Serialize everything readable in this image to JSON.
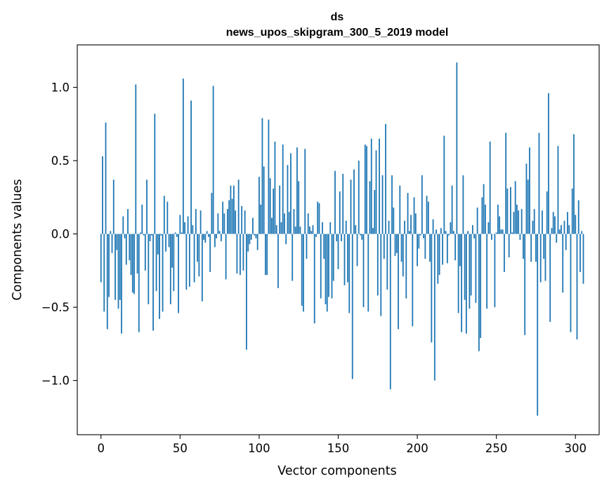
{
  "chart_data": {
    "type": "bar",
    "title_lines": [
      "ds",
      "news_upos_skipgram_300_5_2019 model"
    ],
    "xlabel": "Vector components",
    "ylabel": "Components values",
    "xlim": [
      -15,
      315
    ],
    "ylim": [
      -1.37,
      1.29
    ],
    "xticks": [
      0,
      50,
      100,
      150,
      200,
      250,
      300
    ],
    "yticks": [
      {
        "value": -1.0,
        "label": "−1.0"
      },
      {
        "value": -0.5,
        "label": "−0.5"
      },
      {
        "value": 0.0,
        "label": "0.0"
      },
      {
        "value": 0.5,
        "label": "0.5"
      },
      {
        "value": 1.0,
        "label": "1.0"
      }
    ],
    "bar_color": "#1f77b4",
    "grid": false,
    "x_start": 0,
    "values": [
      -0.33,
      0.53,
      -0.53,
      0.76,
      -0.65,
      -0.43,
      0.02,
      -0.13,
      0.37,
      -0.45,
      -0.11,
      -0.51,
      -0.45,
      -0.68,
      0.12,
      -0.03,
      -0.21,
      0.17,
      -0.18,
      -0.28,
      -0.4,
      -0.41,
      1.02,
      -0.27,
      -0.67,
      0.01,
      0.2,
      -0.01,
      -0.25,
      0.37,
      -0.48,
      -0.05,
      -0.01,
      -0.66,
      0.82,
      -0.39,
      -0.14,
      -0.58,
      -0.01,
      -0.53,
      0.26,
      -0.12,
      0.22,
      -0.09,
      -0.48,
      -0.23,
      -0.39,
      0.01,
      -0.02,
      -0.54,
      0.13,
      0.01,
      1.06,
      0.08,
      -0.38,
      0.12,
      -0.36,
      0.91,
      0.06,
      -0.33,
      0.17,
      -0.19,
      -0.29,
      0.16,
      -0.46,
      -0.04,
      -0.06,
      0.02,
      -0.02,
      -0.26,
      0.28,
      1.01,
      -0.09,
      -0.03,
      0.14,
      0.02,
      -0.05,
      0.22,
      0.14,
      -0.31,
      0.17,
      0.23,
      0.33,
      0.24,
      0.33,
      0.16,
      -0.27,
      0.37,
      -0.28,
      0.19,
      -0.25,
      0.16,
      -0.79,
      -0.12,
      -0.07,
      -0.04,
      0.11,
      -0.01,
      -0.03,
      -0.11,
      0.39,
      0.2,
      0.79,
      0.46,
      -0.28,
      -0.28,
      0.78,
      0.38,
      0.11,
      0.31,
      0.63,
      0.06,
      -0.37,
      0.33,
      0.08,
      0.61,
      0.14,
      -0.07,
      0.47,
      0.15,
      0.55,
      -0.32,
      0.17,
      0.05,
      0.59,
      0.36,
      0.05,
      -0.49,
      -0.53,
      0.58,
      -0.17,
      0.14,
      0.05,
      0.02,
      0.06,
      -0.61,
      -0.02,
      0.22,
      0.21,
      -0.44,
      0.08,
      -0.17,
      -0.48,
      -0.53,
      -0.43,
      0.08,
      -0.44,
      -0.32,
      0.43,
      -0.05,
      -0.24,
      0.29,
      -0.05,
      0.41,
      -0.35,
      0.09,
      -0.33,
      -0.54,
      0.37,
      -0.99,
      0.44,
      0.06,
      -0.22,
      0.5,
      -0.01,
      -0.04,
      -0.5,
      0.61,
      0.6,
      -0.53,
      0.36,
      0.65,
      0.04,
      0.3,
      0.57,
      -0.42,
      0.65,
      -0.56,
      0.4,
      -0.17,
      0.75,
      -0.38,
      0.09,
      -1.06,
      0.4,
      0.18,
      -0.15,
      -0.13,
      -0.65,
      0.33,
      -0.19,
      -0.29,
      0.09,
      -0.44,
      0.28,
      0.02,
      0.13,
      -0.63,
      0.25,
      0.14,
      -0.22,
      -0.1,
      -0.01,
      0.4,
      -0.03,
      -0.17,
      0.26,
      0.22,
      -0.19,
      -0.74,
      0.1,
      -1.0,
      0.03,
      -0.34,
      -0.28,
      0.04,
      -0.21,
      0.67,
      0.02,
      -0.2,
      -0.01,
      0.08,
      0.33,
      0.02,
      -0.18,
      1.17,
      -0.54,
      -0.22,
      -0.67,
      0.4,
      -0.45,
      -0.68,
      0.02,
      -0.51,
      -0.42,
      0.06,
      -0.03,
      -0.47,
      0.18,
      -0.8,
      -0.71,
      0.25,
      0.34,
      0.2,
      -0.51,
      0.08,
      0.63,
      -0.04,
      0.0,
      -0.5,
      0.01,
      0.2,
      0.12,
      0.03,
      0.03,
      -0.26,
      0.69,
      0.31,
      -0.16,
      0.32,
      0.01,
      0.15,
      0.36,
      0.2,
      0.16,
      -0.04,
      0.17,
      -0.17,
      -0.69,
      0.48,
      0.37,
      0.59,
      -0.19,
      0.09,
      0.17,
      -0.19,
      -1.24,
      0.69,
      -0.33,
      0.16,
      -0.17,
      -0.32,
      0.29,
      0.96,
      -0.6,
      0.04,
      0.15,
      0.12,
      -0.06,
      0.6,
      0.03,
      0.06,
      -0.4,
      0.09,
      -0.11,
      0.15,
      0.06,
      -0.67,
      0.31,
      0.68,
      0.13,
      -0.72,
      0.23,
      -0.26,
      0.02,
      -0.34
    ]
  }
}
